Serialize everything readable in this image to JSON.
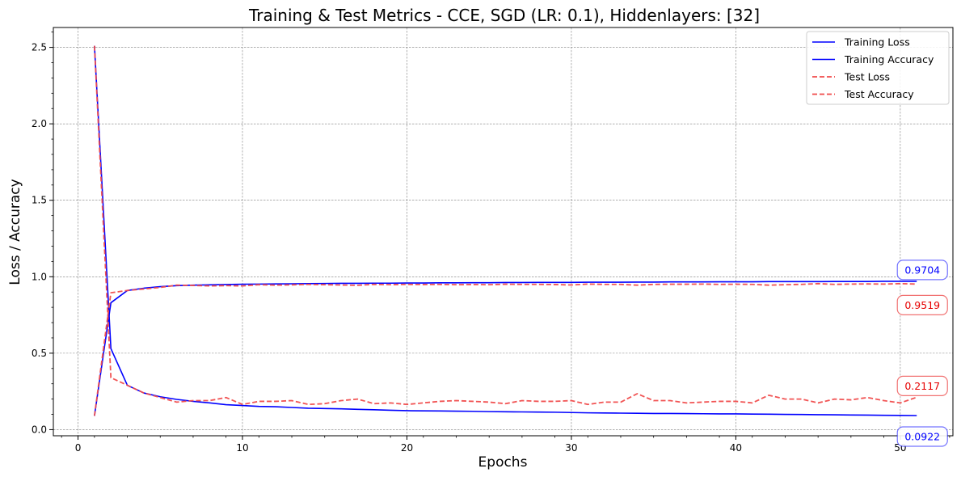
{
  "chart_data": {
    "type": "line",
    "title": "Training & Test Metrics - CCE, SGD (LR: 0.1), Hiddenlayers: [32]",
    "xlabel": "Epochs",
    "ylabel": "Loss / Accuracy",
    "xlim": [
      -1.5,
      53.2
    ],
    "ylim": [
      -0.04,
      2.63
    ],
    "xticks": [
      0,
      10,
      20,
      30,
      40,
      50
    ],
    "yticks": [
      0.0,
      0.5,
      1.0,
      1.5,
      2.0,
      2.5
    ],
    "xtick_labels": [
      "0",
      "10",
      "20",
      "30",
      "40",
      "50"
    ],
    "ytick_labels": [
      "0.0",
      "0.5",
      "1.0",
      "1.5",
      "2.0",
      "2.5"
    ],
    "grid": true,
    "legend_position": "top-right",
    "colors": {
      "training": "#0000ff",
      "test": "#f04b4b"
    },
    "x": [
      1,
      2,
      3,
      4,
      5,
      6,
      7,
      8,
      9,
      10,
      11,
      12,
      13,
      14,
      15,
      16,
      17,
      18,
      19,
      20,
      21,
      22,
      23,
      24,
      25,
      26,
      27,
      28,
      29,
      30,
      31,
      32,
      33,
      34,
      35,
      36,
      37,
      38,
      39,
      40,
      41,
      42,
      43,
      44,
      45,
      46,
      47,
      48,
      49,
      50,
      51
    ],
    "series": [
      {
        "name": "Training Loss",
        "style": "solid",
        "values": [
          2.51,
          0.53,
          0.29,
          0.24,
          0.215,
          0.198,
          0.185,
          0.175,
          0.163,
          0.158,
          0.152,
          0.15,
          0.145,
          0.14,
          0.138,
          0.136,
          0.133,
          0.13,
          0.127,
          0.124,
          0.123,
          0.122,
          0.121,
          0.12,
          0.118,
          0.117,
          0.116,
          0.115,
          0.114,
          0.112,
          0.11,
          0.109,
          0.108,
          0.107,
          0.106,
          0.106,
          0.105,
          0.104,
          0.103,
          0.103,
          0.102,
          0.101,
          0.1,
          0.099,
          0.098,
          0.097,
          0.096,
          0.095,
          0.094,
          0.093,
          0.0922
        ]
      },
      {
        "name": "Training Accuracy",
        "style": "solid",
        "values": [
          0.09,
          0.83,
          0.91,
          0.925,
          0.935,
          0.942,
          0.945,
          0.947,
          0.949,
          0.951,
          0.952,
          0.953,
          0.954,
          0.955,
          0.956,
          0.957,
          0.957,
          0.958,
          0.958,
          0.959,
          0.959,
          0.96,
          0.96,
          0.961,
          0.961,
          0.962,
          0.962,
          0.963,
          0.963,
          0.963,
          0.964,
          0.964,
          0.964,
          0.965,
          0.965,
          0.966,
          0.966,
          0.966,
          0.967,
          0.967,
          0.967,
          0.968,
          0.968,
          0.968,
          0.968,
          0.969,
          0.969,
          0.969,
          0.97,
          0.97,
          0.9704
        ]
      },
      {
        "name": "Test Loss",
        "style": "dashed",
        "values": [
          2.51,
          0.34,
          0.29,
          0.24,
          0.21,
          0.18,
          0.19,
          0.19,
          0.21,
          0.165,
          0.185,
          0.185,
          0.19,
          0.165,
          0.17,
          0.19,
          0.2,
          0.17,
          0.175,
          0.165,
          0.175,
          0.185,
          0.19,
          0.185,
          0.18,
          0.17,
          0.19,
          0.185,
          0.185,
          0.19,
          0.165,
          0.18,
          0.18,
          0.235,
          0.19,
          0.19,
          0.175,
          0.18,
          0.185,
          0.185,
          0.175,
          0.225,
          0.2,
          0.2,
          0.175,
          0.2,
          0.195,
          0.21,
          0.19,
          0.175,
          0.2117
        ]
      },
      {
        "name": "Test Accuracy",
        "style": "dashed",
        "values": [
          0.09,
          0.895,
          0.91,
          0.92,
          0.93,
          0.945,
          0.943,
          0.94,
          0.942,
          0.94,
          0.948,
          0.945,
          0.947,
          0.95,
          0.948,
          0.946,
          0.944,
          0.95,
          0.948,
          0.95,
          0.949,
          0.95,
          0.948,
          0.949,
          0.948,
          0.951,
          0.95,
          0.95,
          0.949,
          0.946,
          0.952,
          0.95,
          0.95,
          0.945,
          0.95,
          0.951,
          0.951,
          0.952,
          0.95,
          0.951,
          0.95,
          0.945,
          0.948,
          0.95,
          0.955,
          0.95,
          0.952,
          0.953,
          0.952,
          0.955,
          0.9519
        ]
      }
    ],
    "annotations": [
      {
        "text": "0.9704",
        "x": 51,
        "y": 0.9704,
        "color": "#0000ff",
        "offset": "above"
      },
      {
        "text": "0.9519",
        "x": 51,
        "y": 0.9519,
        "color": "#e60000",
        "offset": "below"
      },
      {
        "text": "0.2117",
        "x": 51,
        "y": 0.2117,
        "color": "#e60000",
        "offset": "above"
      },
      {
        "text": "0.0922",
        "x": 51,
        "y": 0.0922,
        "color": "#0000ff",
        "offset": "below"
      }
    ]
  }
}
